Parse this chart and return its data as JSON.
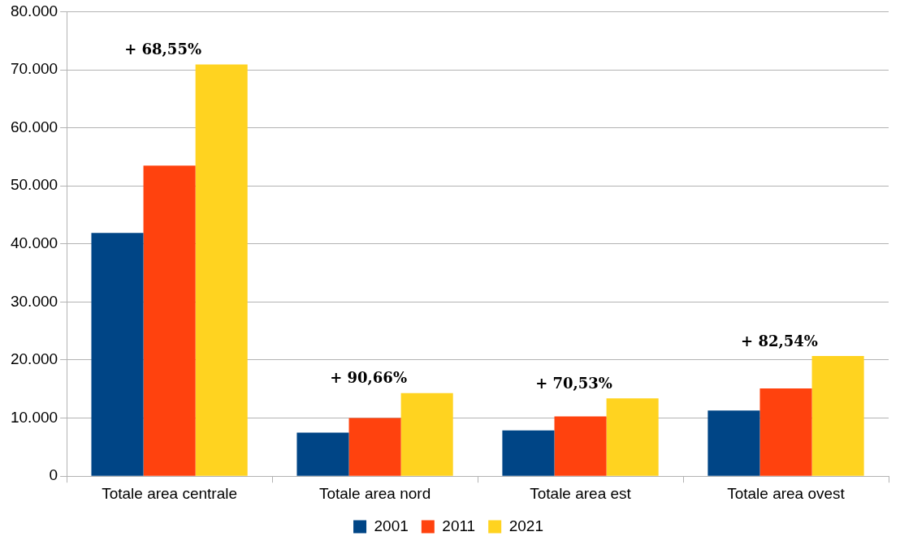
{
  "chart_data": {
    "type": "bar",
    "categories": [
      "Totale area centrale",
      "Totale area nord",
      "Totale area est",
      "Totale area ovest"
    ],
    "series": [
      {
        "name": "2001",
        "color": "#004586",
        "values": [
          41900,
          7500,
          7900,
          11300
        ]
      },
      {
        "name": "2011",
        "color": "#ff420e",
        "values": [
          53500,
          10000,
          10300,
          15100
        ]
      },
      {
        "name": "2021",
        "color": "#ffd320",
        "values": [
          70900,
          14300,
          13400,
          20700
        ]
      }
    ],
    "ylim": [
      0,
      80000
    ],
    "yticks": [
      {
        "value": 0,
        "label": "0"
      },
      {
        "value": 10000,
        "label": "10.000"
      },
      {
        "value": 20000,
        "label": "20.000"
      },
      {
        "value": 30000,
        "label": "30.000"
      },
      {
        "value": 40000,
        "label": "40.000"
      },
      {
        "value": 50000,
        "label": "50.000"
      },
      {
        "value": 60000,
        "label": "60.000"
      },
      {
        "value": 70000,
        "label": "70.000"
      },
      {
        "value": 80000,
        "label": "80.000"
      }
    ],
    "grid": "y",
    "legend": "bottom",
    "annotations": [
      "+ 68,55%",
      "+ 90,66%",
      "+ 70,53%",
      "+ 82,54%"
    ]
  }
}
